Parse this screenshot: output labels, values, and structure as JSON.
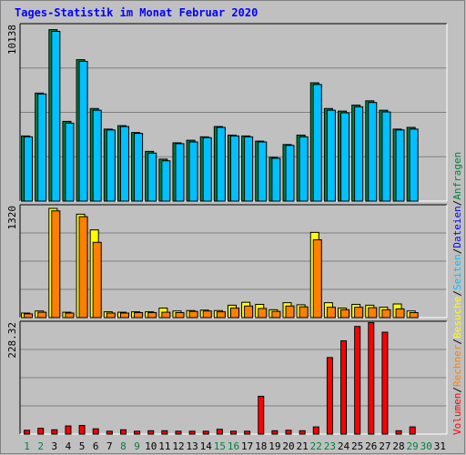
{
  "title": "Tages-Statistik im Monat Februar 2020",
  "colors": {
    "anfragen": "#008040",
    "dateien": "#0000ff",
    "seiten": "#00c0ff",
    "besuche": "#ffff00",
    "rechner": "#ff8000",
    "volumen": "#ff0000",
    "weekday_label": "#000000",
    "weekend_label": "#008040",
    "title": "#0000ff"
  },
  "legend": {
    "volumen": "Volumen",
    "rechner": "Rechner",
    "besuche": "Besuche",
    "seiten": "Seiten",
    "dateien": "Dateien",
    "anfragen": "Anfragen",
    "separator": "/"
  },
  "chart_data": {
    "type": "bar",
    "days": [
      1,
      2,
      3,
      4,
      5,
      6,
      7,
      8,
      9,
      10,
      11,
      12,
      13,
      14,
      15,
      16,
      17,
      18,
      19,
      20,
      21,
      22,
      23,
      24,
      25,
      26,
      27,
      28,
      29,
      30,
      31
    ],
    "weekend_days": [
      1,
      2,
      8,
      9,
      15,
      16,
      22,
      23,
      29,
      30
    ],
    "panels": [
      {
        "name": "requests",
        "max_label": "10138",
        "max_value": 10138,
        "series": [
          {
            "name": "Anfragen",
            "key": "anfragen",
            "values": [
              3800,
              6300,
              10000,
              4650,
              8250,
              5400,
              4200,
              4400,
              4000,
              2900,
              2450,
              3400,
              3550,
              3750,
              4350,
              3850,
              3800,
              3500,
              2550,
              3300,
              3850,
              6900,
              5400,
              5250,
              5600,
              5850,
              5300,
              4200,
              4300,
              0,
              0
            ]
          },
          {
            "name": "Dateien",
            "key": "dateien",
            "values": [
              3750,
              6250,
              9900,
              4550,
              8150,
              5300,
              4150,
              4350,
              3950,
              2800,
              2350,
              3350,
              3450,
              3700,
              4300,
              3800,
              3750,
              3450,
              2500,
              3250,
              3750,
              6800,
              5300,
              5150,
              5500,
              5750,
              5200,
              4150,
              4200,
              0,
              0
            ]
          }
        ]
      },
      {
        "name": "visits",
        "max_label": "1320",
        "max_value": 1320,
        "series": [
          {
            "name": "Besuche",
            "key": "besuche",
            "values": [
              55,
              80,
              1320,
              65,
              1250,
              1060,
              70,
              65,
              70,
              70,
              115,
              80,
              85,
              90,
              85,
              150,
              185,
              160,
              95,
              180,
              155,
              1030,
              180,
              115,
              160,
              150,
              125,
              165,
              80,
              0,
              0
            ]
          },
          {
            "name": "Rechner",
            "key": "rechner",
            "values": [
              45,
              65,
              1290,
              55,
              1220,
              910,
              55,
              55,
              60,
              60,
              65,
              60,
              75,
              80,
              70,
              115,
              140,
              110,
              75,
              140,
              130,
              940,
              125,
              95,
              125,
              120,
              95,
              105,
              60,
              0,
              0
            ]
          }
        ]
      },
      {
        "name": "volume",
        "max_label": "228.32",
        "max_value": 228.32,
        "series": [
          {
            "name": "Volumen",
            "key": "volumen",
            "values": [
              8,
              12,
              9,
              17,
              18,
              11,
              6,
              9,
              6,
              7,
              7,
              6,
              6,
              6,
              10,
              6,
              6,
              79,
              7,
              8,
              7,
              15,
              160,
              195,
              225,
              233,
              213,
              7,
              15,
              0,
              0
            ]
          }
        ]
      }
    ]
  }
}
